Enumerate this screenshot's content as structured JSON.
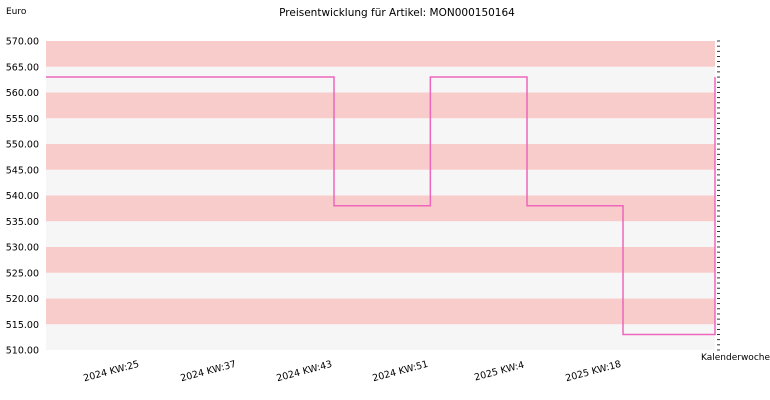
{
  "chart_data": {
    "type": "line",
    "step": true,
    "title": "Preisentwicklung für Artikel: MON000150164",
    "ylabel": "Euro",
    "xlabel": "Kalenderwoche",
    "ylim": [
      510,
      570
    ],
    "yticks": [
      "510.00",
      "515.00",
      "520.00",
      "525.00",
      "530.00",
      "535.00",
      "540.00",
      "545.00",
      "550.00",
      "555.00",
      "560.00",
      "565.00",
      "570.00"
    ],
    "xticks": [
      "2024 KW:25",
      "2024 KW:37",
      "2024 KW:43",
      "2024 KW:51",
      "2025 KW:4",
      "2025 KW:18"
    ],
    "series": [
      {
        "values": [
          563,
          563,
          538,
          563,
          538,
          513,
          563
        ]
      }
    ],
    "grid": "horizontal bands",
    "colors": {
      "line": "#ee66bb",
      "band_a": "#f9cccc",
      "band_b": "#f6f6f6"
    }
  }
}
